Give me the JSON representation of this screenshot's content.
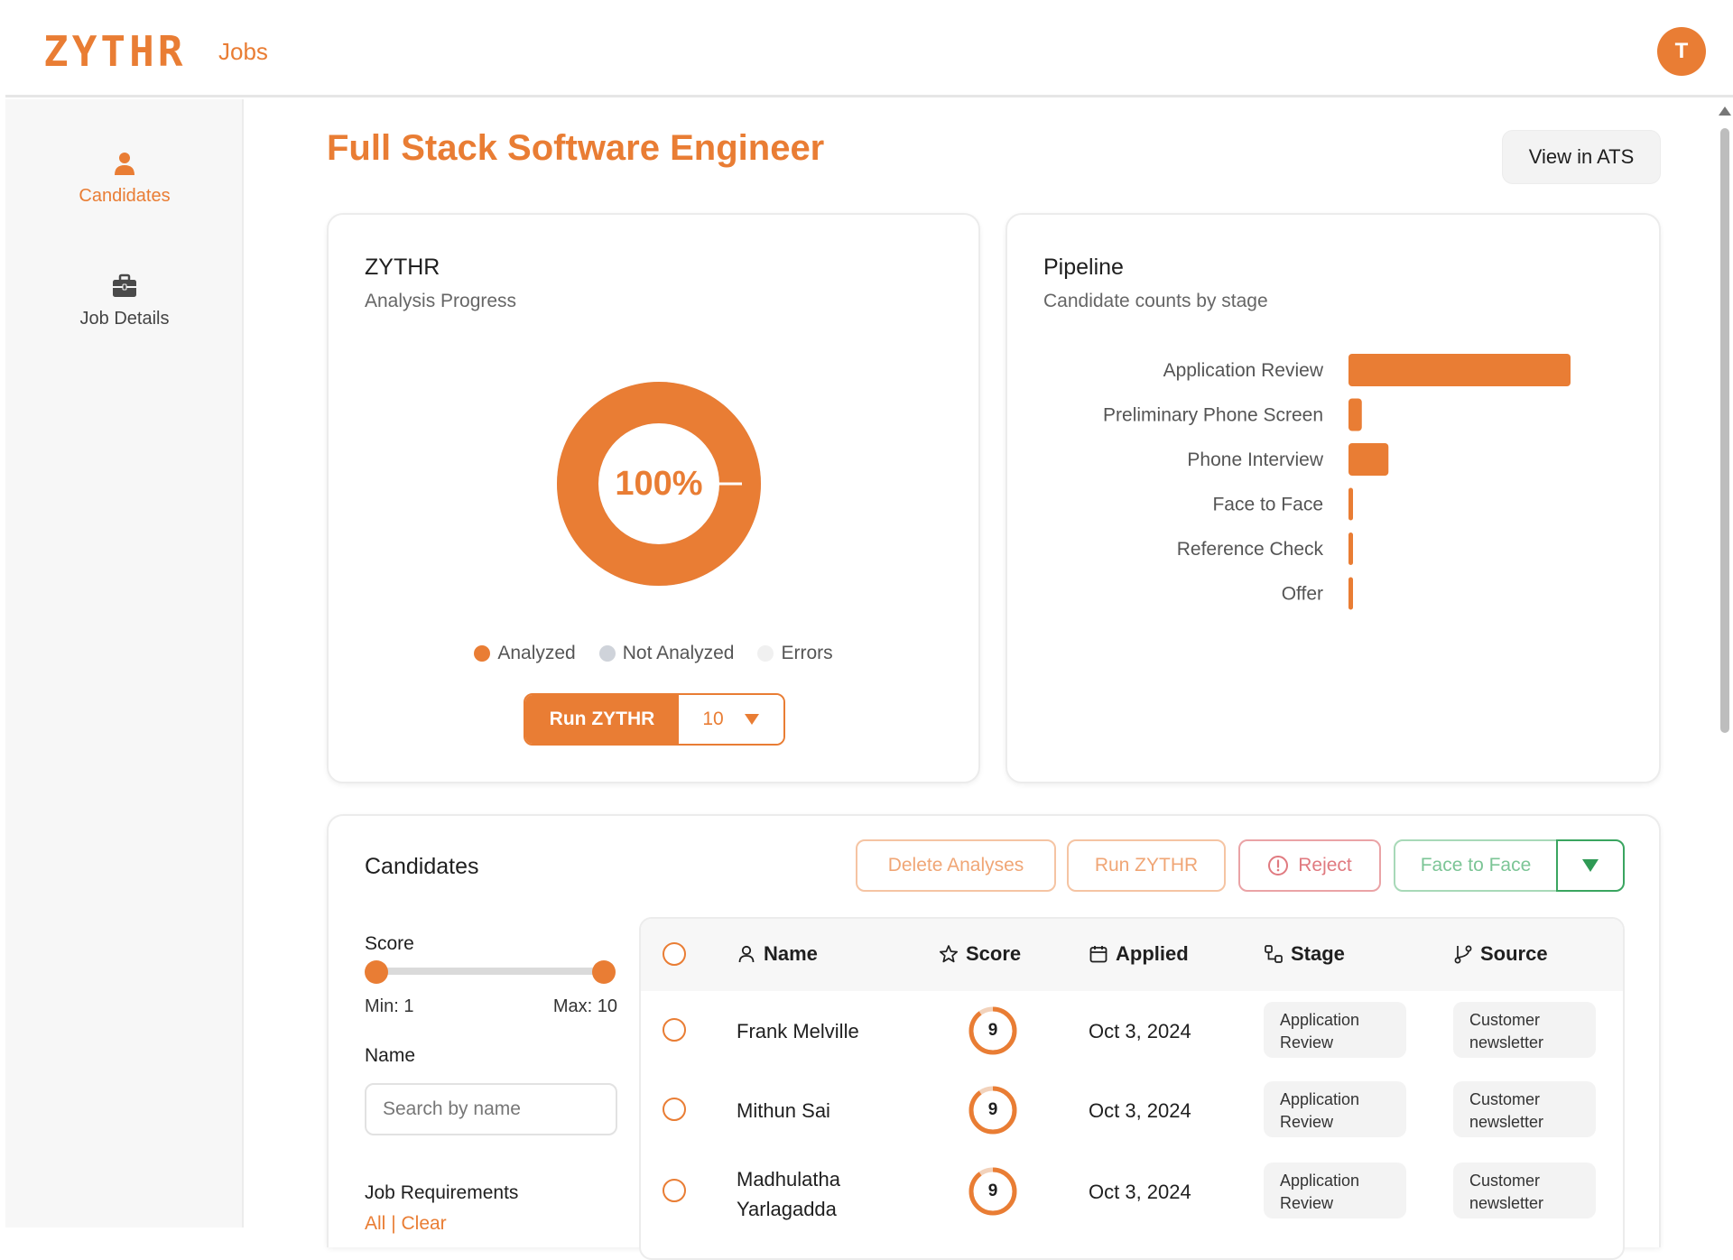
{
  "header": {
    "logo": "ZYTHR",
    "nav_jobs": "Jobs",
    "avatar_initial": "T"
  },
  "sidebar": {
    "items": [
      {
        "label": "Candidates",
        "icon": "user-icon",
        "active": true
      },
      {
        "label": "Job Details",
        "icon": "briefcase-icon",
        "active": false
      }
    ]
  },
  "page": {
    "title": "Full Stack Software Engineer",
    "view_ats_label": "View in ATS"
  },
  "analysis": {
    "title": "ZYTHR",
    "subtitle": "Analysis Progress",
    "percent_label": "100%",
    "analyzed_fraction": 1.0,
    "legend": [
      {
        "label": "Analyzed",
        "color": "#e97d34"
      },
      {
        "label": "Not Analyzed",
        "color": "#cfd3da"
      },
      {
        "label": "Errors",
        "color": "#f0f0f0"
      }
    ],
    "run_label": "Run ZYTHR",
    "run_count": "10"
  },
  "pipeline": {
    "title": "Pipeline",
    "subtitle": "Candidate counts by stage"
  },
  "chart_data": {
    "type": "bar",
    "orientation": "horizontal",
    "categories": [
      "Application Review",
      "Preliminary Phone Screen",
      "Phone Interview",
      "Face to Face",
      "Reference Check",
      "Offer"
    ],
    "values": [
      50,
      3,
      9,
      1,
      1,
      1
    ],
    "xlim": [
      0,
      50
    ],
    "grid": false,
    "color": "#e97d34"
  },
  "candidates": {
    "title": "Candidates",
    "actions": {
      "delete": "Delete Analyses",
      "run": "Run ZYTHR",
      "reject": "Reject",
      "stage": "Face to Face"
    },
    "filters": {
      "score_label": "Score",
      "min_label": "Min: 1",
      "max_label": "Max: 10",
      "score_min": 1,
      "score_max": 10,
      "name_label": "Name",
      "name_placeholder": "Search by name",
      "requirements_label": "Job Requirements",
      "all_label": "All",
      "clear_label": "Clear"
    },
    "columns": {
      "name": "Name",
      "score": "Score",
      "applied": "Applied",
      "stage": "Stage",
      "source": "Source"
    },
    "rows": [
      {
        "name": "Frank Melville",
        "score": "9",
        "score_fraction": 0.9,
        "applied": "Oct 3, 2024",
        "stage_line1": "Application",
        "stage_line2": "Review",
        "source_line1": "Customer",
        "source_line2": "newsletter"
      },
      {
        "name": "Mithun Sai",
        "score": "9",
        "score_fraction": 0.9,
        "applied": "Oct 3, 2024",
        "stage_line1": "Application",
        "stage_line2": "Review",
        "source_line1": "Customer",
        "source_line2": "newsletter"
      },
      {
        "name": "Madhulatha Yarlagadda",
        "name_line1": "Madhulatha",
        "name_line2": "Yarlagadda",
        "score": "9",
        "score_fraction": 0.9,
        "applied": "Oct 3, 2024",
        "stage_line1": "Application",
        "stage_line2": "Review",
        "source_line1": "Customer",
        "source_line2": "newsletter"
      }
    ]
  }
}
